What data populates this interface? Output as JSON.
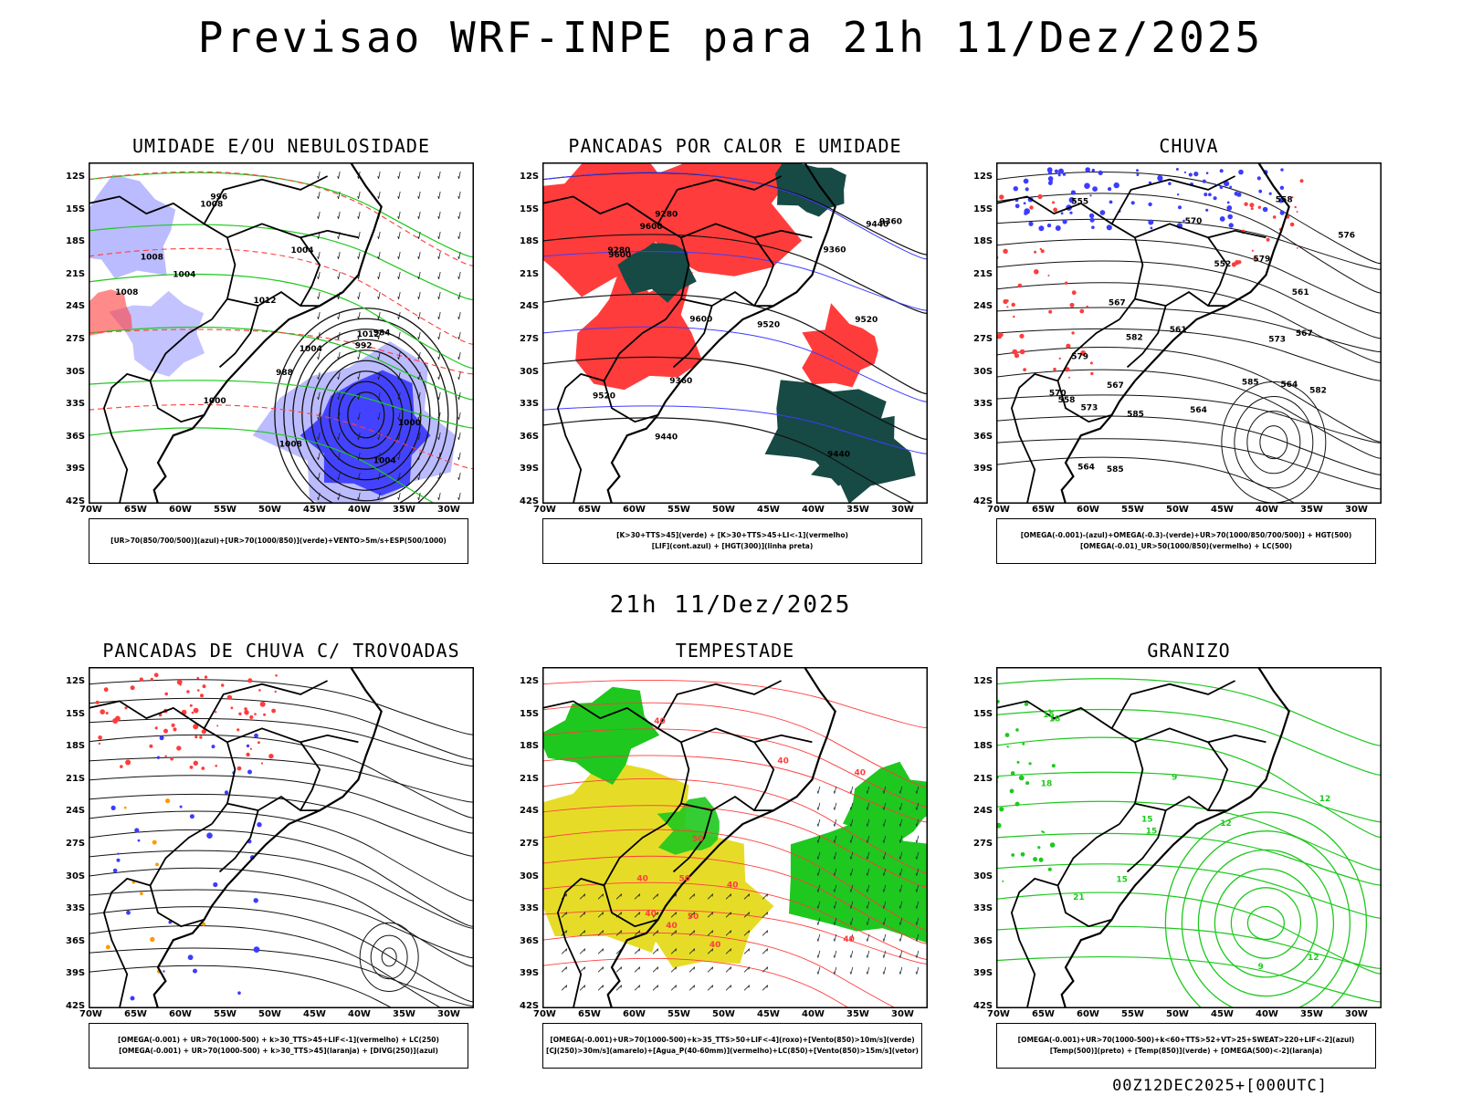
{
  "header": {
    "title": "Previsao WRF-INPE  para 21h 11/Dez/2025"
  },
  "middle_title": "21h 11/Dez/2025",
  "footer": "00Z12DEC2025+[000UTC]",
  "lat_ticks": [
    "12S",
    "15S",
    "18S",
    "21S",
    "24S",
    "27S",
    "30S",
    "33S",
    "36S",
    "39S",
    "42S"
  ],
  "lon_ticks": [
    "70W",
    "65W",
    "60W",
    "55W",
    "50W",
    "45W",
    "40W",
    "35W",
    "30W"
  ],
  "panels": [
    {
      "title": "UMIDADE E/OU NEBULOSIDADE",
      "legend": [
        "[UR>70(850/700/500)](azul)+[UR>70(1000/850)](verde)+VENTO>5m/s+ESP(500/1000)"
      ],
      "labels": [
        "1004",
        "1008",
        "1012",
        "1008",
        "1000",
        "1004",
        "1008",
        "1004",
        "1000",
        "992",
        "996",
        "1012",
        "1004",
        "984",
        "988",
        "1008"
      ]
    },
    {
      "title": "PANCADAS POR CALOR E UMIDADE",
      "legend": [
        "[K>30+TTS>45](verde) + [K>30+TTS>45+LI<-1](vermelho)",
        "[LIF](cont.azul) + [HGT(300)](linha preta)"
      ],
      "labels": [
        "9600",
        "9520",
        "9600",
        "9440",
        "9520",
        "9600",
        "9520",
        "9440",
        "9360",
        "9440",
        "9360",
        "9280",
        "9280",
        "9360"
      ]
    },
    {
      "title": "CHUVA",
      "legend": [
        "[OMEGA(-0.001)-(azul)+OMEGA(-0.3)-(verde)+UR>70(1000/850/700/500)] + HGT(500)",
        "[OMEGA(-0.01)_UR>50(1000/850)(vermelho) + LC(500)"
      ],
      "labels": [
        "585",
        "585",
        "582",
        "585",
        "582",
        "579",
        "579",
        "576",
        "573",
        "570",
        "567",
        "564",
        "561",
        "558",
        "555",
        "552",
        "567",
        "564",
        "561",
        "558",
        "573",
        "570",
        "567",
        "564"
      ]
    },
    {
      "title": "PANCADAS DE CHUVA C/ TROVOADAS",
      "legend": [
        "[OMEGA(-0.001) + UR>70(1000-500) + k>30_TTS>45+LIF<-1](vermelho) + LC(250)",
        "[OMEGA(-0.001) + UR>70(1000-500) + k>30_TTS>45](laranja) + [DIVG(250)](azul)"
      ],
      "labels": []
    },
    {
      "title": "TEMPESTADE",
      "legend": [
        "[OMEGA(-0.001)+UR>70(1000-500)+k>35_TTS>50+LIF<-4](roxo)+[Vento(850)>10m/s](verde)",
        "[CJ(250)>30m/s](amarelo)+[Agua_P(40-60mm)](vermelho)+LC(850)+[Vento(850)>15m/s](vetor)"
      ],
      "labels": [
        "50",
        "40",
        "40",
        "50",
        "40",
        "40",
        "40",
        "50",
        "40",
        "40",
        "40",
        "40"
      ]
    },
    {
      "title": "GRANIZO",
      "legend": [
        "[OMEGA(-0.001)+UR>70(1000-500)+k<60+TTS>52+VT>25+SWEAT>220+LIF<-2](azul)",
        "[Temp(500)](preto) + [Temp(850)](verde) + [OMEGA(500)<-2](laranja)"
      ],
      "labels": [
        "15",
        "18",
        "21",
        "12",
        "15",
        "9",
        "12",
        "15",
        "18",
        "12",
        "9",
        "15"
      ]
    }
  ],
  "colors": {
    "red": "#ff3c3c",
    "green": "#1ec81e",
    "blue": "#3c3cff",
    "lightblue": "#b4b4ff",
    "darkgreen": "#174a44",
    "yellow": "#e6dc28"
  }
}
